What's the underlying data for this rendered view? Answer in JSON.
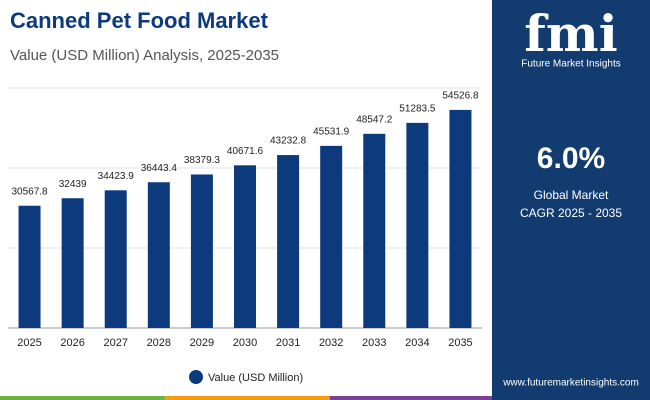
{
  "chart_data": {
    "type": "bar",
    "title": "Canned Pet Food Market",
    "subtitle": "Value (USD Million) Analysis, 2025-2035",
    "categories": [
      "2025",
      "2026",
      "2027",
      "2028",
      "2029",
      "2030",
      "2031",
      "2032",
      "2033",
      "2034",
      "2035"
    ],
    "series": [
      {
        "name": "Value (USD Million)",
        "color": "#0d3a7d",
        "values": [
          30567.8,
          32439,
          34423.9,
          36443.4,
          38379.3,
          40671.6,
          43232.8,
          45531.9,
          48547.2,
          51283.5,
          54526.8
        ]
      }
    ],
    "ylim": [
      0,
      60000
    ],
    "yticks": [
      0,
      20000,
      40000,
      60000
    ],
    "grid": true,
    "legend": "bottom"
  },
  "sidebar": {
    "logo": "fmi",
    "brand": "Future Market Insights",
    "cagr": "6.0%",
    "cagr_label_1": "Global Market",
    "cagr_label_2": "CAGR 2025 - 2035",
    "website": "www.futuremarketinsights.com"
  }
}
